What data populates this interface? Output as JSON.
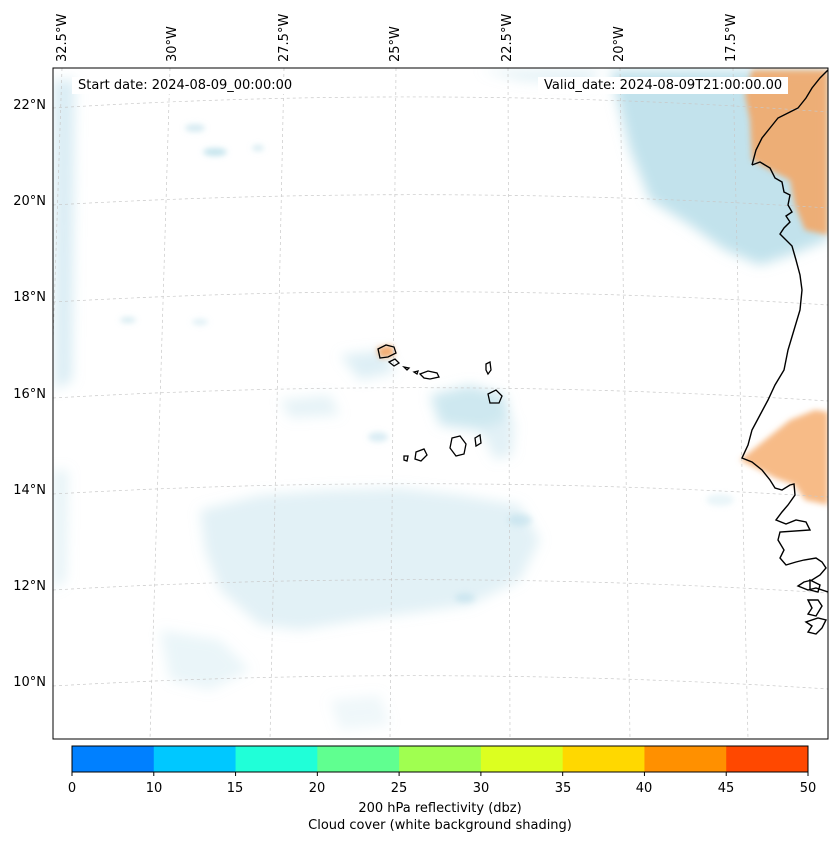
{
  "info": {
    "start_date": "Start date: 2024-08-09_00:00:00",
    "valid_date": "Valid_date: 2024-08-09T21:00:00.00"
  },
  "axes": {
    "lon_labels": [
      "32.5°W",
      "30°W",
      "27.5°W",
      "25°W",
      "22.5°W",
      "20°W",
      "17.5°W"
    ],
    "lat_labels": [
      "22°N",
      "20°N",
      "18°N",
      "16°N",
      "14°N",
      "12°N",
      "10°N"
    ]
  },
  "colorbar": {
    "ticks": [
      "0",
      "10",
      "15",
      "20",
      "25",
      "30",
      "35",
      "40",
      "45",
      "50"
    ],
    "colors": [
      "#0080ff",
      "#00c8ff",
      "#20ffd8",
      "#60ff90",
      "#a0ff50",
      "#dcff20",
      "#ffd800",
      "#ff9000",
      "#ff4800"
    ],
    "label": "200 hPa reflectivity (dbz)",
    "sublabel": "Cloud cover (white background shading)"
  },
  "colors": {
    "cloud": "#add8e6",
    "reflectivity_low": "#f4a460",
    "coast": "#000000"
  }
}
